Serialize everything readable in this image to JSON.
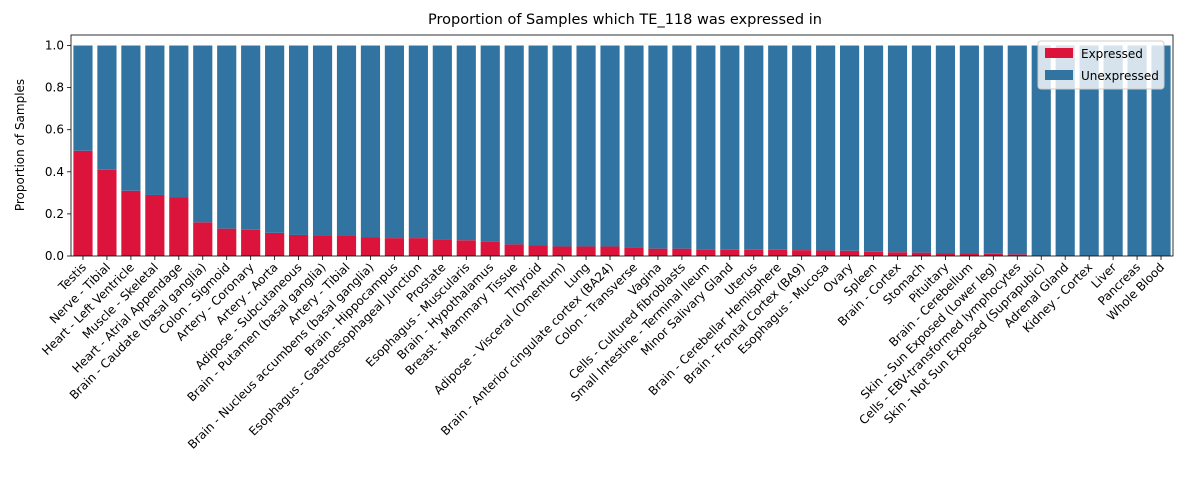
{
  "chart_data": {
    "type": "bar",
    "stacked": true,
    "title": "Proportion of Samples which TE_118 was expressed in",
    "xlabel": "",
    "ylabel": "Proportion of Samples",
    "ylim": [
      0,
      1.05
    ],
    "yticks": [
      "0.0",
      "0.2",
      "0.4",
      "0.6",
      "0.8",
      "1.0"
    ],
    "legend_placement": "top-right",
    "grid": false,
    "categories": [
      "Testis",
      "Nerve - Tibial",
      "Heart - Left Ventricle",
      "Muscle - Skeletal",
      "Heart - Atrial Appendage",
      "Brain - Caudate (basal ganglia)",
      "Colon - Sigmoid",
      "Artery - Coronary",
      "Artery - Aorta",
      "Adipose - Subcutaneous",
      "Brain - Putamen (basal ganglia)",
      "Artery - Tibial",
      "Brain - Nucleus accumbens (basal ganglia)",
      "Brain - Hippocampus",
      "Esophagus - Gastroesophageal Junction",
      "Prostate",
      "Esophagus - Muscularis",
      "Brain - Hypothalamus",
      "Breast - Mammary Tissue",
      "Thyroid",
      "Adipose - Visceral (Omentum)",
      "Lung",
      "Brain - Anterior cingulate cortex (BA24)",
      "Colon - Transverse",
      "Vagina",
      "Cells - Cultured fibroblasts",
      "Small Intestine - Terminal Ileum",
      "Minor Salivary Gland",
      "Uterus",
      "Brain - Cerebellar Hemisphere",
      "Brain - Frontal Cortex (BA9)",
      "Esophagus - Mucosa",
      "Ovary",
      "Spleen",
      "Brain - Cortex",
      "Stomach",
      "Pituitary",
      "Brain - Cerebellum",
      "Skin - Sun Exposed (Lower leg)",
      "Cells - EBV-transformed lymphocytes",
      "Skin - Not Sun Exposed (Suprapubic)",
      "Adrenal Gland",
      "Kidney - Cortex",
      "Liver",
      "Pancreas",
      "Whole Blood"
    ],
    "series": [
      {
        "name": "Expressed",
        "color": "#dc143c",
        "values": [
          0.5,
          0.41,
          0.31,
          0.29,
          0.28,
          0.16,
          0.13,
          0.125,
          0.11,
          0.1,
          0.095,
          0.095,
          0.09,
          0.085,
          0.085,
          0.08,
          0.075,
          0.07,
          0.055,
          0.05,
          0.045,
          0.045,
          0.045,
          0.04,
          0.035,
          0.035,
          0.032,
          0.03,
          0.03,
          0.03,
          0.028,
          0.026,
          0.025,
          0.02,
          0.018,
          0.016,
          0.014,
          0.012,
          0.011,
          0.008,
          0.0,
          0.0,
          0.0,
          0.0,
          0.0,
          0.0
        ]
      },
      {
        "name": "Unexpressed",
        "color": "#3274a1",
        "values": [
          0.5,
          0.59,
          0.69,
          0.71,
          0.72,
          0.84,
          0.87,
          0.875,
          0.89,
          0.9,
          0.905,
          0.905,
          0.91,
          0.915,
          0.915,
          0.92,
          0.925,
          0.93,
          0.945,
          0.95,
          0.955,
          0.955,
          0.955,
          0.96,
          0.965,
          0.965,
          0.968,
          0.97,
          0.97,
          0.97,
          0.972,
          0.974,
          0.975,
          0.98,
          0.982,
          0.984,
          0.986,
          0.988,
          0.989,
          0.992,
          1.0,
          1.0,
          1.0,
          1.0,
          1.0,
          1.0
        ]
      }
    ]
  }
}
